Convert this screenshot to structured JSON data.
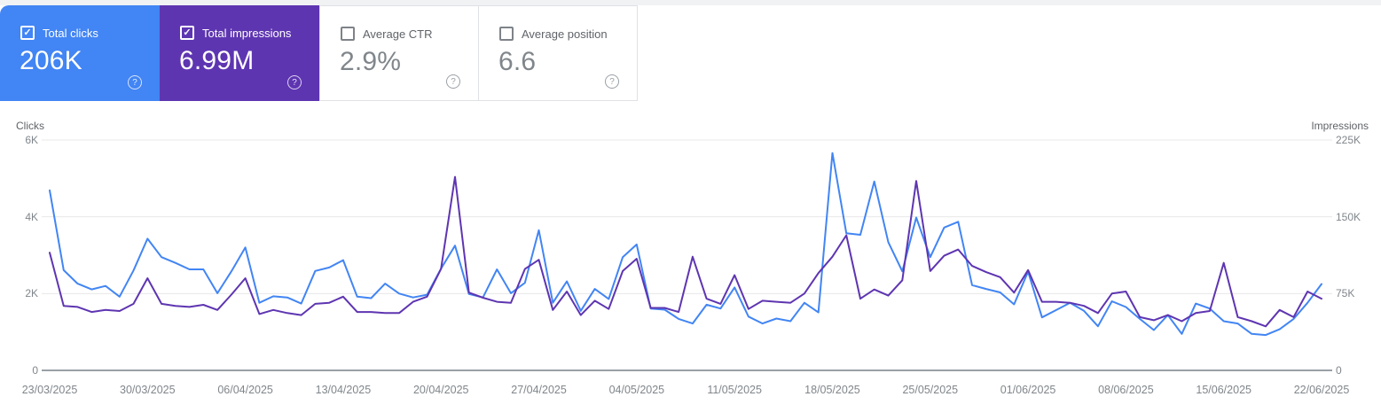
{
  "cards": [
    {
      "label": "Total clicks",
      "value": "206K",
      "checked": true,
      "bg": "#4285f4"
    },
    {
      "label": "Total impressions",
      "value": "6.99M",
      "checked": true,
      "bg": "#5e35b1"
    },
    {
      "label": "Average CTR",
      "value": "2.9%",
      "checked": false,
      "bg": ""
    },
    {
      "label": "Average position",
      "value": "6.6",
      "checked": false,
      "bg": ""
    }
  ],
  "help_icon_glyph": "?",
  "check_glyph": "✓",
  "chart": {
    "y_axis_left": {
      "title": "Clicks",
      "ticks": [
        {
          "label": "6K",
          "v": 6000
        },
        {
          "label": "4K",
          "v": 4000
        },
        {
          "label": "2K",
          "v": 2000
        },
        {
          "label": "0",
          "v": 0
        }
      ]
    },
    "y_axis_right": {
      "title": "Impressions",
      "ticks": [
        {
          "label": "225K",
          "v": 225000
        },
        {
          "label": "150K",
          "v": 150000
        },
        {
          "label": "75K",
          "v": 75000
        },
        {
          "label": "0",
          "v": 0
        }
      ]
    }
  },
  "chart_data": {
    "type": "line",
    "x_tick_labels": [
      "23/03/2025",
      "30/03/2025",
      "06/04/2025",
      "13/04/2025",
      "20/04/2025",
      "27/04/2025",
      "04/05/2025",
      "11/05/2025",
      "18/05/2025",
      "25/05/2025",
      "01/06/2025",
      "08/06/2025",
      "15/06/2025",
      "22/06/2025"
    ],
    "x_start": "23/03/2025",
    "x_end": "22/06/2025",
    "frequency": "daily",
    "points": 92,
    "grid": "horizontal",
    "ylim_left": [
      0,
      6000
    ],
    "ylim_right": [
      0,
      225000
    ],
    "series": [
      {
        "name": "Total clicks",
        "axis": "left",
        "color": "#4285f4",
        "values": [
          4690,
          2610,
          2260,
          2110,
          2200,
          1920,
          2600,
          3430,
          2950,
          2800,
          2630,
          2630,
          2010,
          2580,
          3200,
          1760,
          1930,
          1900,
          1740,
          2590,
          2680,
          2870,
          1920,
          1880,
          2260,
          2000,
          1900,
          1970,
          2650,
          3250,
          1990,
          1900,
          2630,
          2010,
          2280,
          3650,
          1760,
          2320,
          1550,
          2120,
          1860,
          2950,
          3280,
          1610,
          1580,
          1340,
          1220,
          1710,
          1610,
          2160,
          1400,
          1220,
          1350,
          1280,
          1760,
          1510,
          5660,
          3570,
          3530,
          4920,
          3340,
          2580,
          3980,
          2950,
          3720,
          3870,
          2220,
          2120,
          2030,
          1720,
          2570,
          1380,
          1570,
          1760,
          1550,
          1150,
          1800,
          1650,
          1340,
          1050,
          1440,
          950,
          1740,
          1610,
          1280,
          1220,
          950,
          920,
          1070,
          1340,
          1760,
          2250
        ]
      },
      {
        "name": "Total impressions",
        "axis": "right",
        "color": "#5e35b1",
        "values": [
          115000,
          63000,
          62000,
          57000,
          59000,
          58000,
          65000,
          90000,
          65000,
          63000,
          62000,
          64000,
          59000,
          74000,
          90000,
          55000,
          59000,
          56000,
          54000,
          65000,
          66000,
          72000,
          57000,
          57000,
          56000,
          56000,
          67000,
          72000,
          99000,
          189000,
          76000,
          71000,
          67000,
          66000,
          99000,
          108000,
          59000,
          77000,
          54000,
          68000,
          60000,
          97000,
          109000,
          61000,
          61000,
          57000,
          111000,
          70000,
          65000,
          93000,
          60000,
          68000,
          67000,
          66000,
          75000,
          95000,
          111000,
          132000,
          70000,
          79000,
          73000,
          88000,
          185000,
          97000,
          112000,
          118000,
          102000,
          96000,
          91000,
          76000,
          98000,
          67000,
          67000,
          66000,
          63000,
          56000,
          75000,
          77000,
          52000,
          49000,
          54000,
          48000,
          56000,
          58000,
          105000,
          52000,
          48000,
          43000,
          59000,
          52000,
          77000,
          70000
        ]
      }
    ]
  }
}
